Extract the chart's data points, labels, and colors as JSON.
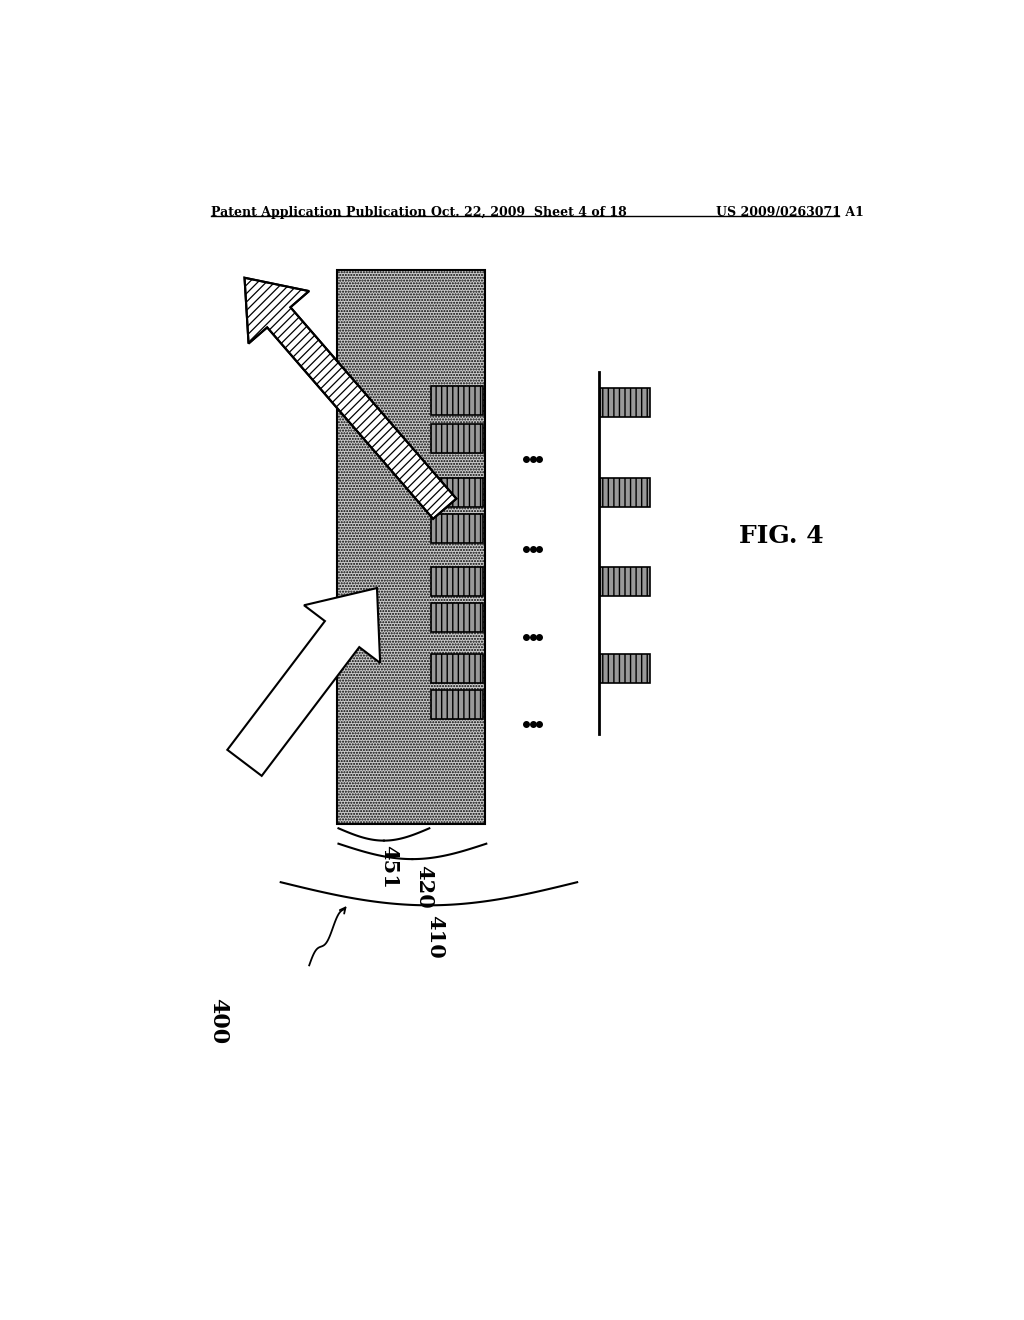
{
  "title_left": "Patent Application Publication",
  "title_center": "Oct. 22, 2009  Sheet 4 of 18",
  "title_right": "US 2009/0263071 A1",
  "fig_label": "FIG. 4",
  "label_400": "400",
  "label_410": "410",
  "label_420": "420",
  "label_451": "451",
  "bg_color": "#ffffff",
  "body_fc": "#cccccc",
  "stripe_fc": "#aaaaaa",
  "line_color": "#000000"
}
